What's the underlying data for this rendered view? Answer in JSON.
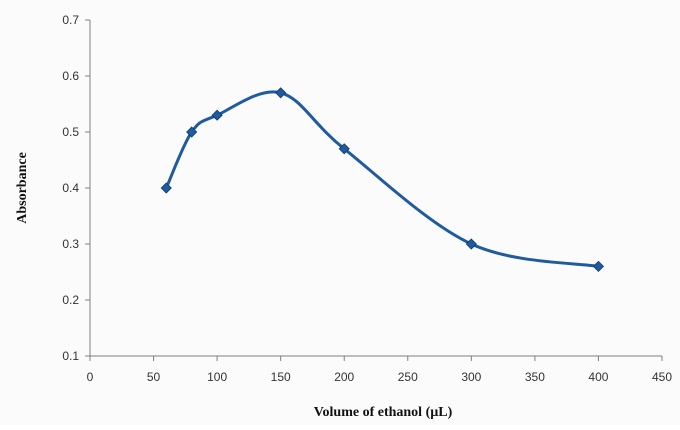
{
  "chart_data": {
    "type": "line",
    "title": "",
    "xlabel": "Volume of ethanol (µL)",
    "ylabel": "Absorbance",
    "xlim": [
      0,
      450
    ],
    "ylim": [
      0.1,
      0.7
    ],
    "xticks": [
      0,
      50,
      100,
      150,
      200,
      250,
      300,
      350,
      400,
      450
    ],
    "yticks": [
      0.1,
      0.2,
      0.3,
      0.4,
      0.5,
      0.6,
      0.7
    ],
    "xtick_labels": [
      "0",
      "50",
      "100",
      "150",
      "200",
      "250",
      "300",
      "350",
      "400",
      "450"
    ],
    "ytick_labels": [
      "0.1",
      "0.2",
      "0.3",
      "0.4",
      "0.5",
      "0.6",
      "0.7"
    ],
    "grid": false,
    "legend": "none",
    "smooth": true,
    "marker": "diamond",
    "series": [
      {
        "x": [
          60,
          80,
          100,
          150,
          200,
          300,
          400
        ],
        "y": [
          0.4,
          0.5,
          0.53,
          0.57,
          0.47,
          0.3,
          0.26
        ],
        "color": "#1f5b9e"
      }
    ]
  }
}
